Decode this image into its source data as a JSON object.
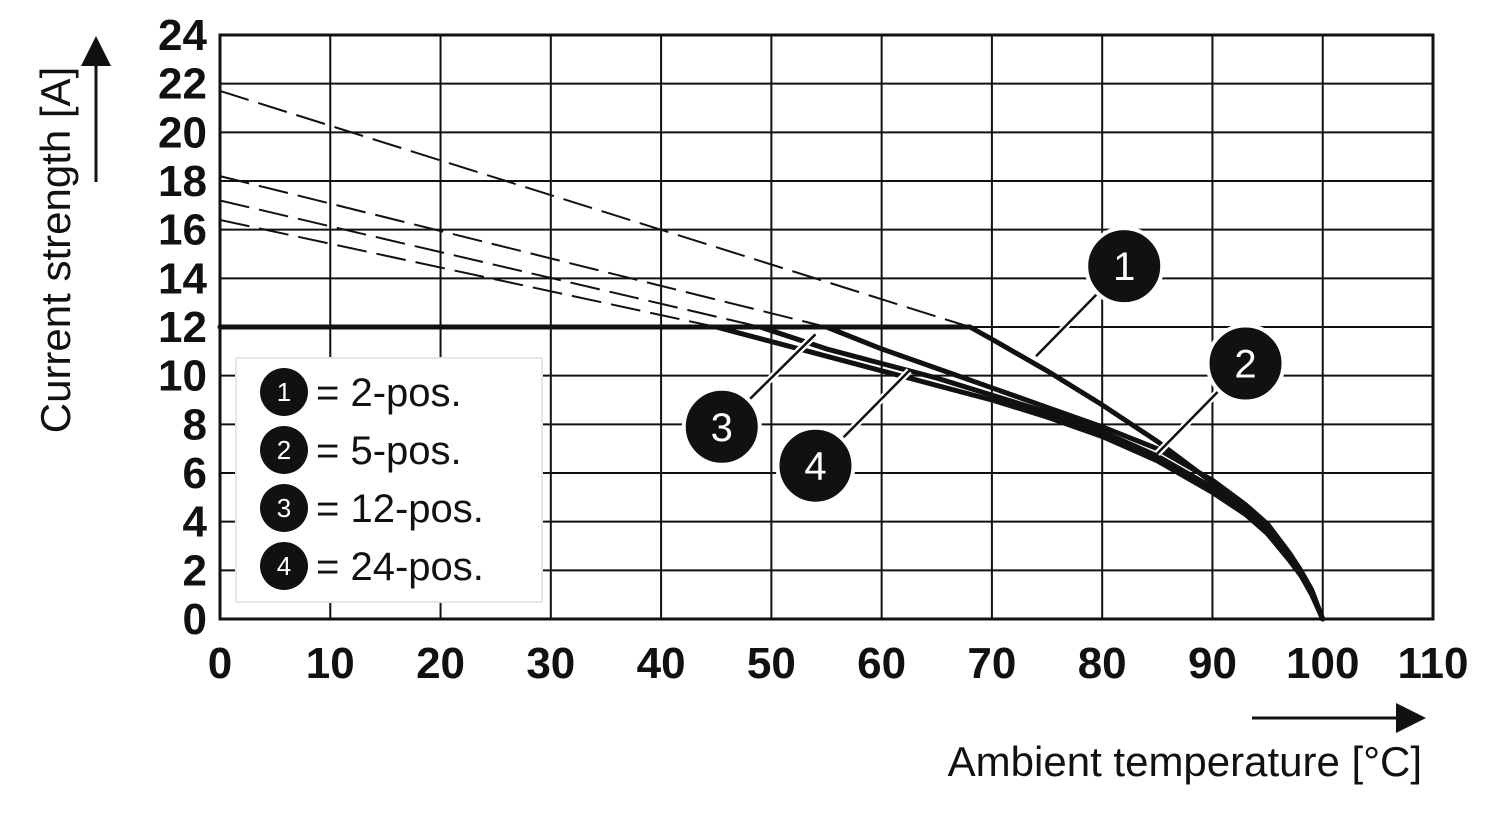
{
  "chart_data": {
    "type": "line",
    "xlabel": "Ambient temperature [°C]",
    "ylabel": "Current strength [A]",
    "xlim": [
      0,
      110
    ],
    "ylim": [
      0,
      24
    ],
    "x_ticks": [
      "0",
      "10",
      "20",
      "30",
      "40",
      "50",
      "60",
      "70",
      "80",
      "90",
      "100",
      "110"
    ],
    "y_ticks": [
      "0",
      "2",
      "4",
      "6",
      "8",
      "10",
      "12",
      "14",
      "16",
      "18",
      "20",
      "22",
      "24"
    ],
    "grid": true,
    "legend_position": "lower-left",
    "cap_line": {
      "y": 12,
      "x": [
        0,
        68
      ]
    },
    "series": [
      {
        "id": "1",
        "name": "= 2-pos.",
        "dashed": {
          "x": [
            0,
            68
          ],
          "y": [
            21.7,
            12
          ]
        },
        "solid": {
          "x": [
            68,
            70,
            75,
            80,
            85,
            90,
            93,
            95,
            97,
            98,
            99,
            100
          ],
          "y": [
            12,
            11.5,
            10.2,
            8.8,
            7.3,
            5.6,
            4.4,
            3.5,
            2.4,
            1.8,
            1.1,
            0
          ]
        }
      },
      {
        "id": "2",
        "name": "= 5-pos.",
        "dashed": {
          "x": [
            0,
            55
          ],
          "y": [
            18.2,
            12
          ]
        },
        "solid": {
          "x": [
            55,
            60,
            65,
            70,
            75,
            80,
            85,
            90,
            93,
            95,
            97,
            98,
            99,
            100
          ],
          "y": [
            12,
            11.1,
            10.3,
            9.5,
            8.7,
            7.9,
            7.0,
            5.7,
            4.7,
            3.9,
            2.7,
            2.0,
            1.2,
            0
          ]
        }
      },
      {
        "id": "3",
        "name": "= 12-pos.",
        "dashed": {
          "x": [
            0,
            49
          ],
          "y": [
            17.2,
            12
          ]
        },
        "solid": {
          "x": [
            49,
            55,
            60,
            65,
            70,
            75,
            80,
            85,
            90,
            93,
            95,
            97,
            98,
            99,
            100
          ],
          "y": [
            12,
            11.1,
            10.5,
            9.9,
            9.2,
            8.5,
            7.7,
            6.7,
            5.4,
            4.5,
            3.7,
            2.6,
            1.9,
            1.1,
            0
          ]
        }
      },
      {
        "id": "4",
        "name": "= 24-pos.",
        "dashed": {
          "x": [
            0,
            45
          ],
          "y": [
            16.4,
            12
          ]
        },
        "solid": {
          "x": [
            45,
            50,
            55,
            60,
            65,
            70,
            75,
            80,
            85,
            90,
            93,
            95,
            97,
            98,
            99,
            100
          ],
          "y": [
            12,
            11.4,
            10.8,
            10.2,
            9.6,
            9.0,
            8.3,
            7.5,
            6.5,
            5.2,
            4.3,
            3.5,
            2.5,
            1.8,
            1.0,
            0
          ]
        }
      }
    ],
    "callouts": [
      {
        "id": "1",
        "anchor": [
          74,
          10.8
        ],
        "badge": [
          82,
          14.5
        ]
      },
      {
        "id": "2",
        "anchor": [
          85,
          6.8
        ],
        "badge": [
          93,
          10.5
        ]
      },
      {
        "id": "3",
        "anchor": [
          54,
          11.7
        ],
        "badge": [
          45.5,
          7.9
        ]
      },
      {
        "id": "4",
        "anchor": [
          62.5,
          10.2
        ],
        "badge": [
          54,
          6.3
        ]
      }
    ]
  }
}
